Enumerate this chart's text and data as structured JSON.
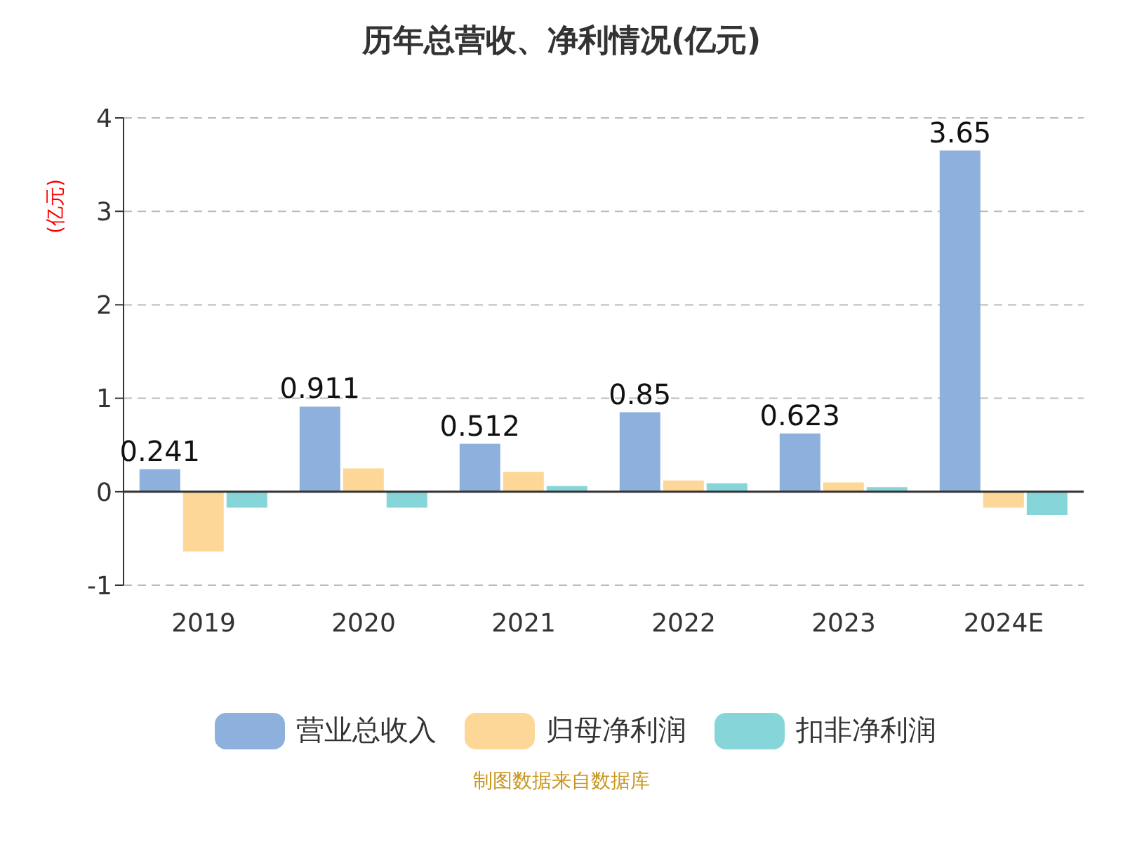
{
  "chart_data": {
    "type": "bar",
    "title": "历年总营收、净利情况(亿元)",
    "ylabel": "(亿元)",
    "categories": [
      "2019",
      "2020",
      "2021",
      "2022",
      "2023",
      "2024E"
    ],
    "series": [
      {
        "name": "营业总收入",
        "color": "#8eb0dc",
        "values": [
          0.241,
          0.911,
          0.512,
          0.85,
          0.623,
          3.65
        ],
        "value_labels": [
          "0.241",
          "0.911",
          "0.512",
          "0.85",
          "0.623",
          "3.65"
        ]
      },
      {
        "name": "归母净利润",
        "color": "#fdd798",
        "values": [
          -0.64,
          0.25,
          0.21,
          0.12,
          0.1,
          -0.17
        ]
      },
      {
        "name": "扣非净利润",
        "color": "#86d5d8",
        "values": [
          -0.17,
          -0.17,
          0.06,
          0.09,
          0.05,
          -0.25
        ]
      }
    ],
    "ylim": [
      -1,
      4
    ],
    "yticks": [
      -1,
      0,
      1,
      2,
      3,
      4
    ],
    "grid": "y",
    "legend": "bottom",
    "annotations": [
      "制图数据来自数据库"
    ]
  }
}
